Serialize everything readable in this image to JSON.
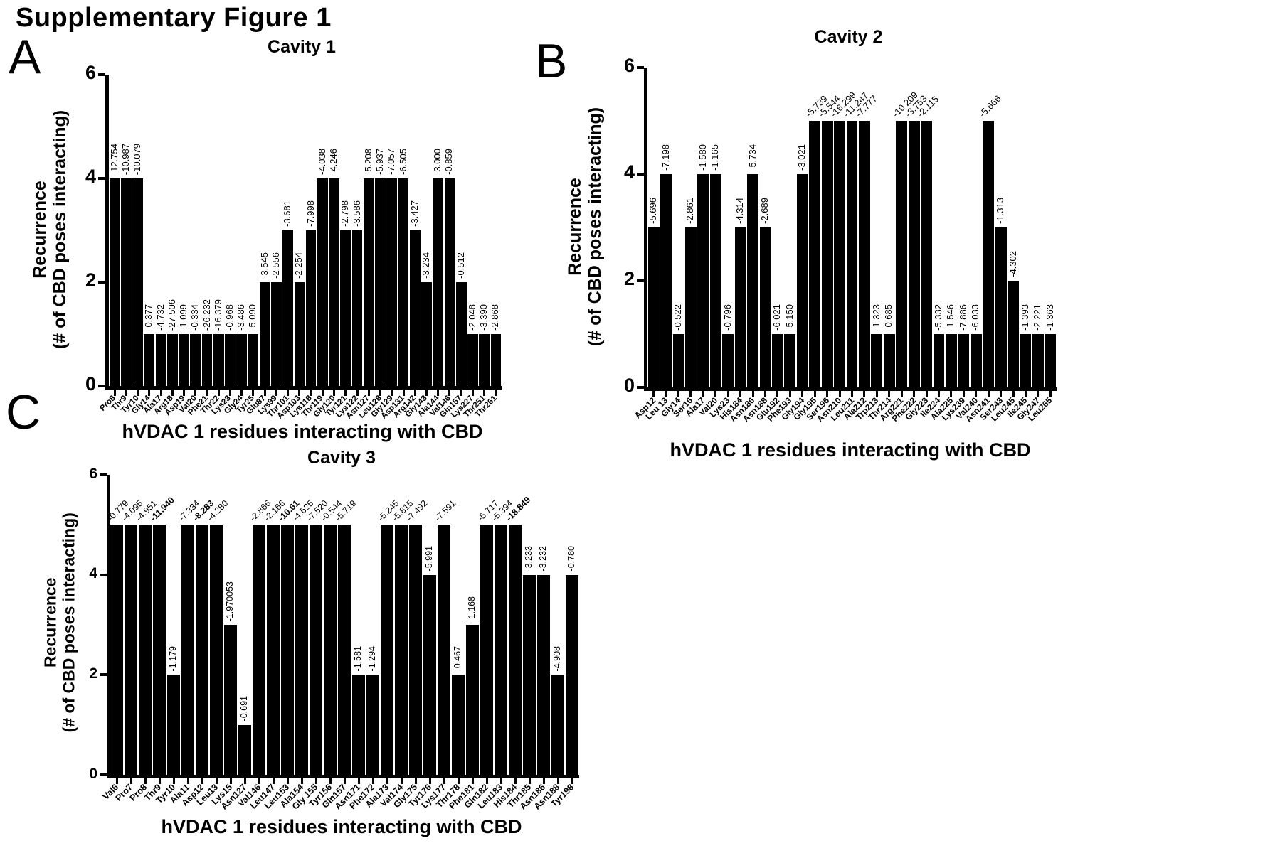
{
  "figure": {
    "title": "Supplementary Figure 1",
    "panels": [
      {
        "letter": "A"
      },
      {
        "letter": "B"
      },
      {
        "letter": "C"
      }
    ]
  },
  "colors": {
    "bar": "#000000",
    "background": "#ffffff",
    "text": "#000000"
  },
  "chart_data": [
    {
      "panel": "A",
      "type": "bar",
      "title": "Cavity 1",
      "xlabel": "hVDAC 1 residues interacting with CBD",
      "ylabel": "Recurrence (# of CBD poses interacting)",
      "ylabel_line1": "Recurrence",
      "ylabel_line2": "(# of CBD poses interacting)",
      "ylim": [
        0,
        6
      ],
      "yticks": [
        0,
        2,
        4,
        6
      ],
      "grid": false,
      "legend": false,
      "bars": [
        {
          "residue": "Pro8",
          "recurrence": 4,
          "energy": "-12.754"
        },
        {
          "residue": "Thr9",
          "recurrence": 4,
          "energy": "-10.987"
        },
        {
          "residue": "Tyr10",
          "recurrence": 4,
          "energy": "-10.079"
        },
        {
          "residue": "Gly14",
          "recurrence": 1,
          "energy": "-0.377"
        },
        {
          "residue": "Ala17",
          "recurrence": 1,
          "energy": "-4.732"
        },
        {
          "residue": "Arg18",
          "recurrence": 1,
          "energy": "-27.506"
        },
        {
          "residue": "Asp19",
          "recurrence": 1,
          "energy": "-1.099"
        },
        {
          "residue": "Val20",
          "recurrence": 1,
          "energy": "-0.334"
        },
        {
          "residue": "Phe21",
          "recurrence": 1,
          "energy": "-26.232"
        },
        {
          "residue": "Thr22",
          "recurrence": 1,
          "energy": "-16.379"
        },
        {
          "residue": "Lys23",
          "recurrence": 1,
          "energy": "-0.968"
        },
        {
          "residue": "Gly24",
          "recurrence": 1,
          "energy": "-3.486"
        },
        {
          "residue": "Tyr25",
          "recurrence": 1,
          "energy": "-5.090"
        },
        {
          "residue": "Glu87",
          "recurrence": 2,
          "energy": "-3.545"
        },
        {
          "residue": "Lys99",
          "recurrence": 2,
          "energy": "-2.556"
        },
        {
          "residue": "Thr101",
          "recurrence": 3,
          "energy": "-3.681"
        },
        {
          "residue": "Asp103",
          "recurrence": 2,
          "energy": "-2.254"
        },
        {
          "residue": "Lys118",
          "recurrence": 3,
          "energy": "-7.998"
        },
        {
          "residue": "Thr119",
          "recurrence": 4,
          "energy": "-4.038"
        },
        {
          "residue": "Gly120",
          "recurrence": 4,
          "energy": "-4.246"
        },
        {
          "residue": "Tyr121",
          "recurrence": 3,
          "energy": "-2.798"
        },
        {
          "residue": "Lys122",
          "recurrence": 3,
          "energy": "-3.586"
        },
        {
          "residue": "Asn127",
          "recurrence": 4,
          "energy": "-5.208"
        },
        {
          "residue": "Leu128",
          "recurrence": 4,
          "energy": "-5.937"
        },
        {
          "residue": "Gly129",
          "recurrence": 4,
          "energy": "-7.057"
        },
        {
          "residue": "Asp131",
          "recurrence": 4,
          "energy": "-6.505"
        },
        {
          "residue": "Arg142",
          "recurrence": 3,
          "energy": "-3.427"
        },
        {
          "residue": "Gly143",
          "recurrence": 2,
          "energy": "-3.234"
        },
        {
          "residue": "Ala144",
          "recurrence": 4,
          "energy": "-3.000"
        },
        {
          "residue": "Val146",
          "recurrence": 4,
          "energy": "-0.859"
        },
        {
          "residue": "Gln157",
          "recurrence": 2,
          "energy": "-0.512"
        },
        {
          "residue": "Lys227",
          "recurrence": 1,
          "energy": "-2.048"
        },
        {
          "residue": "Thr251",
          "recurrence": 1,
          "energy": "-3.390"
        },
        {
          "residue": "Thr261",
          "recurrence": 1,
          "energy": "-2.868"
        }
      ]
    },
    {
      "panel": "B",
      "type": "bar",
      "title": "Cavity 2",
      "xlabel": "hVDAC 1 residues interacting with CBD",
      "ylabel": "Recurrence (# of CBD poses interacting)",
      "ylabel_line1": "Recurrence",
      "ylabel_line2": "(# of CBD poses interacting)",
      "ylim": [
        0,
        6
      ],
      "yticks": [
        0,
        2,
        4,
        6
      ],
      "grid": false,
      "legend": false,
      "bars": [
        {
          "residue": "Asp12",
          "recurrence": 3,
          "energy": "-5.696"
        },
        {
          "residue": "Leu 13",
          "recurrence": 4,
          "energy": "-7.198"
        },
        {
          "residue": "Gly14",
          "recurrence": 1,
          "energy": "-0.522"
        },
        {
          "residue": "Ser16",
          "recurrence": 3,
          "energy": "-2.861"
        },
        {
          "residue": "Ala17",
          "recurrence": 4,
          "energy": "-1.580"
        },
        {
          "residue": "Val20",
          "recurrence": 4,
          "energy": "-1.165"
        },
        {
          "residue": "Lys23",
          "recurrence": 1,
          "energy": "-0.796"
        },
        {
          "residue": "His184",
          "recurrence": 3,
          "energy": "-4.314"
        },
        {
          "residue": "Asn186",
          "recurrence": 4,
          "energy": "-5.734"
        },
        {
          "residue": "Asn188",
          "recurrence": 3,
          "energy": "-2.689"
        },
        {
          "residue": "Glu192",
          "recurrence": 1,
          "energy": "-6.021"
        },
        {
          "residue": "Phe193",
          "recurrence": 1,
          "energy": "-5.150"
        },
        {
          "residue": "Gly194",
          "recurrence": 4,
          "energy": "-3.021"
        },
        {
          "residue": "Gly195",
          "recurrence": 5,
          "energy": "-5.739"
        },
        {
          "residue": "Ser196",
          "recurrence": 5,
          "energy": "-5.544"
        },
        {
          "residue": "Asn210",
          "recurrence": 5,
          "energy": "-16.299"
        },
        {
          "residue": "Leu211",
          "recurrence": 5,
          "energy": "-11.247"
        },
        {
          "residue": "Ala212",
          "recurrence": 5,
          "energy": "-7.777"
        },
        {
          "residue": "Trp213",
          "recurrence": 1,
          "energy": "-1.323"
        },
        {
          "residue": "Thr214",
          "recurrence": 1,
          "energy": "-0.685"
        },
        {
          "residue": "Arg221",
          "recurrence": 5,
          "energy": "-10.209"
        },
        {
          "residue": "Phe222",
          "recurrence": 5,
          "energy": "-3.753"
        },
        {
          "residue": "Gly223",
          "recurrence": 5,
          "energy": "-2.115"
        },
        {
          "residue": "Ile224",
          "recurrence": 1,
          "energy": "-5.332"
        },
        {
          "residue": "Ala225",
          "recurrence": 1,
          "energy": "-1.546"
        },
        {
          "residue": "Lys239",
          "recurrence": 1,
          "energy": "-7.886"
        },
        {
          "residue": "Val240",
          "recurrence": 1,
          "energy": "-6.033"
        },
        {
          "residue": "Asn241",
          "recurrence": 5,
          "energy": "-5.666"
        },
        {
          "residue": "Ser243",
          "recurrence": 3,
          "energy": "-1.313"
        },
        {
          "residue": "Leu245",
          "recurrence": 2,
          "energy": "-4.302"
        },
        {
          "residue": "Ile245",
          "recurrence": 1,
          "energy": "-1.393"
        },
        {
          "residue": "Gly247",
          "recurrence": 1,
          "energy": "-2.221"
        },
        {
          "residue": "Leu265",
          "recurrence": 1,
          "energy": "-1.363"
        }
      ]
    },
    {
      "panel": "C",
      "type": "bar",
      "title": "Cavity 3",
      "xlabel": "hVDAC 1 residues interacting with CBD",
      "ylabel": "Recurrence (# of CBD poses interacting)",
      "ylabel_line1": "Recurrence",
      "ylabel_line2": "(# of CBD poses interacting)",
      "ylim": [
        0,
        6
      ],
      "yticks": [
        0,
        2,
        4,
        6
      ],
      "grid": false,
      "legend": false,
      "bars": [
        {
          "residue": "Val6",
          "recurrence": 5,
          "energy": "-0.779"
        },
        {
          "residue": "Pro7",
          "recurrence": 5,
          "energy": "-4.095"
        },
        {
          "residue": "Pro8",
          "recurrence": 5,
          "energy": "-4.951"
        },
        {
          "residue": "Thr9",
          "recurrence": 5,
          "energy": "-11.940",
          "bold": true
        },
        {
          "residue": "Tyr10",
          "recurrence": 2,
          "energy": "-1.179"
        },
        {
          "residue": "Ala11",
          "recurrence": 5,
          "energy": "-7.334"
        },
        {
          "residue": "Asp12",
          "recurrence": 5,
          "energy": "-8.283",
          "bold": true
        },
        {
          "residue": "Leu13",
          "recurrence": 5,
          "energy": "-4.280"
        },
        {
          "residue": "Lys15",
          "recurrence": 3,
          "energy": "-1.970053"
        },
        {
          "residue": "Asn127",
          "recurrence": 1,
          "energy": "-0.691"
        },
        {
          "residue": "Val146",
          "recurrence": 5,
          "energy": "-2.866"
        },
        {
          "residue": "Leu147",
          "recurrence": 5,
          "energy": "-2.166"
        },
        {
          "residue": "Leu153",
          "recurrence": 5,
          "energy": "-10.61",
          "bold": true
        },
        {
          "residue": "Ala154",
          "recurrence": 5,
          "energy": "-4.625"
        },
        {
          "residue": "Gly 155",
          "recurrence": 5,
          "energy": "-7.520"
        },
        {
          "residue": "Tyr156",
          "recurrence": 5,
          "energy": "-0.544"
        },
        {
          "residue": "Gln157",
          "recurrence": 5,
          "energy": "-5.719"
        },
        {
          "residue": "Asn171",
          "recurrence": 2,
          "energy": "-1.581"
        },
        {
          "residue": "Phe172",
          "recurrence": 2,
          "energy": "-1.294"
        },
        {
          "residue": "Ala173",
          "recurrence": 5,
          "energy": "-5.245"
        },
        {
          "residue": "Val174",
          "recurrence": 5,
          "energy": "-5.815"
        },
        {
          "residue": "Gly175",
          "recurrence": 5,
          "energy": "-7.492"
        },
        {
          "residue": "Tyr176",
          "recurrence": 4,
          "energy": "-5.991"
        },
        {
          "residue": "Lys177",
          "recurrence": 5,
          "energy": "-7.591"
        },
        {
          "residue": "Thr178",
          "recurrence": 2,
          "energy": "-0.467"
        },
        {
          "residue": "Phe181",
          "recurrence": 3,
          "energy": "-1.168"
        },
        {
          "residue": "Gln182",
          "recurrence": 5,
          "energy": "-5.717"
        },
        {
          "residue": "Leu183",
          "recurrence": 5,
          "energy": "-5.394"
        },
        {
          "residue": "His184",
          "recurrence": 5,
          "energy": "-18.849",
          "bold": true
        },
        {
          "residue": "Thr185",
          "recurrence": 4,
          "energy": "-3.233"
        },
        {
          "residue": "Asn186",
          "recurrence": 4,
          "energy": "-3.232"
        },
        {
          "residue": "Asn188",
          "recurrence": 2,
          "energy": "-4.908"
        },
        {
          "residue": "Tyr198",
          "recurrence": 4,
          "energy": "-0.780"
        }
      ]
    }
  ]
}
